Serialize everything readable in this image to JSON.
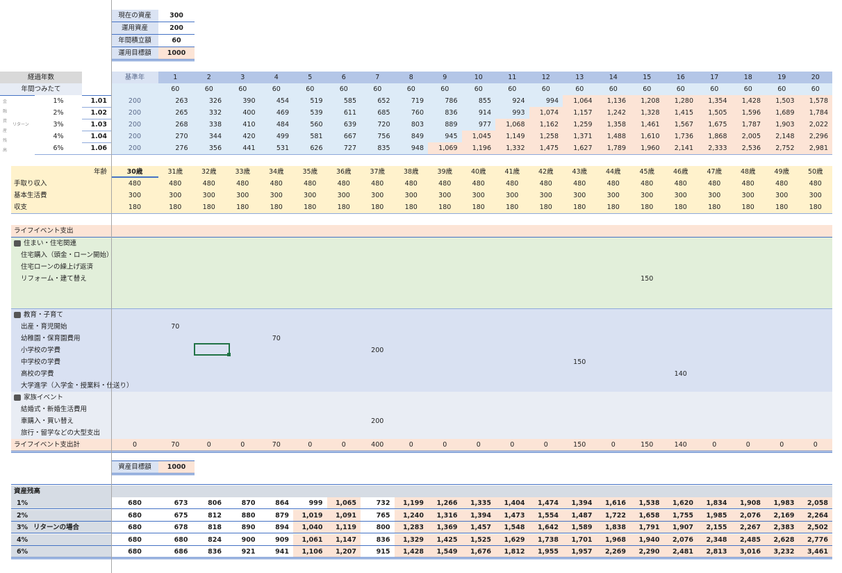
{
  "summary": [
    {
      "label": "現在の資産",
      "value": 300
    },
    {
      "label": "運用資産",
      "value": 200
    },
    {
      "label": "年間積立額",
      "value": 60
    },
    {
      "label": "運用目標額",
      "value": 1000
    }
  ],
  "projection": {
    "header_label": "経過年数",
    "base_label": "基準年",
    "years": [
      1,
      2,
      3,
      4,
      5,
      6,
      7,
      8,
      9,
      10,
      11,
      12,
      13,
      14,
      15,
      16,
      17,
      18,
      19,
      20
    ],
    "contrib_label": "年間つみたて",
    "contrib": [
      60,
      60,
      60,
      60,
      60,
      60,
      60,
      60,
      60,
      60,
      60,
      60,
      60,
      60,
      60,
      60,
      60,
      60,
      60,
      60
    ],
    "side_label": "リターン",
    "vertical_label": "金融資産残高",
    "rows": [
      {
        "rate": "1%",
        "multiplier": 1.01,
        "base": 200,
        "values": [
          263,
          326,
          390,
          454,
          519,
          585,
          652,
          719,
          786,
          855,
          924,
          994,
          "1,064",
          "1,136",
          "1,208",
          "1,280",
          "1,354",
          "1,428",
          "1,503",
          "1,578"
        ]
      },
      {
        "rate": "2%",
        "multiplier": 1.02,
        "base": 200,
        "values": [
          265,
          332,
          400,
          469,
          539,
          611,
          685,
          760,
          836,
          914,
          993,
          "1,074",
          "1,157",
          "1,242",
          "1,328",
          "1,415",
          "1,505",
          "1,596",
          "1,689",
          "1,784"
        ]
      },
      {
        "rate": "3%",
        "multiplier": 1.03,
        "base": 200,
        "values": [
          268,
          338,
          410,
          484,
          560,
          639,
          720,
          803,
          889,
          977,
          "1,068",
          "1,162",
          "1,259",
          "1,358",
          "1,461",
          "1,567",
          "1,675",
          "1,787",
          "1,903",
          "2,022"
        ]
      },
      {
        "rate": "4%",
        "multiplier": 1.04,
        "base": 200,
        "values": [
          270,
          344,
          420,
          499,
          581,
          667,
          756,
          849,
          945,
          "1,045",
          "1,149",
          "1,258",
          "1,371",
          "1,488",
          "1,610",
          "1,736",
          "1,868",
          "2,005",
          "2,148",
          "2,296"
        ]
      },
      {
        "rate": "6%",
        "multiplier": 1.06,
        "base": 200,
        "values": [
          276,
          356,
          441,
          531,
          626,
          727,
          835,
          948,
          "1,069",
          "1,196",
          "1,332",
          "1,475",
          "1,627",
          "1,789",
          "1,960",
          "2,141",
          "2,333",
          "2,536",
          "2,752",
          "2,981"
        ]
      }
    ]
  },
  "cashflow": {
    "age_label": "年齢",
    "ages": [
      "30歳",
      "31歳",
      "32歳",
      "33歳",
      "34歳",
      "35歳",
      "36歳",
      "37歳",
      "38歳",
      "39歳",
      "40歳",
      "41歳",
      "42歳",
      "43歳",
      "44歳",
      "45歳",
      "46歳",
      "47歳",
      "48歳",
      "49歳",
      "50歳"
    ],
    "rows": [
      {
        "label": "手取り収入",
        "values": [
          480,
          480,
          480,
          480,
          480,
          480,
          480,
          480,
          480,
          480,
          480,
          480,
          480,
          480,
          480,
          480,
          480,
          480,
          480,
          480,
          480
        ]
      },
      {
        "label": "基本生活費",
        "values": [
          300,
          300,
          300,
          300,
          300,
          300,
          300,
          300,
          300,
          300,
          300,
          300,
          300,
          300,
          300,
          300,
          300,
          300,
          300,
          300,
          300
        ]
      },
      {
        "label": "収支",
        "values": [
          180,
          180,
          180,
          180,
          180,
          180,
          180,
          180,
          180,
          180,
          180,
          180,
          180,
          180,
          180,
          180,
          180,
          180,
          180,
          180,
          180
        ]
      }
    ]
  },
  "life_events": {
    "title": "ライフイベント支出",
    "groups": [
      {
        "title": "住まい・住宅関連",
        "items": [
          {
            "label": "住宅購入（頭金・ローン開始）"
          },
          {
            "label": "住宅ローンの繰上げ返済"
          },
          {
            "label": "リフォーム・建て替え",
            "values": [
              null,
              null,
              null,
              null,
              null,
              null,
              null,
              null,
              null,
              null,
              null,
              null,
              null,
              null,
              null,
              150,
              null,
              null,
              null,
              null,
              null
            ]
          }
        ]
      },
      {
        "title": "教育・子育て",
        "items": [
          {
            "label": "出産・育児開始",
            "values": [
              null,
              70,
              null,
              null,
              null,
              null,
              null,
              null,
              null,
              null,
              null,
              null,
              null,
              null,
              null,
              null,
              null,
              null,
              null,
              null,
              null
            ]
          },
          {
            "label": "幼稚園・保育園費用",
            "values": [
              null,
              null,
              null,
              null,
              70,
              null,
              null,
              null,
              null,
              null,
              null,
              null,
              null,
              null,
              null,
              null,
              null,
              null,
              null,
              null,
              null
            ]
          },
          {
            "label": "小学校の学費",
            "values": [
              null,
              null,
              null,
              null,
              null,
              null,
              null,
              200,
              null,
              null,
              null,
              null,
              null,
              null,
              null,
              null,
              null,
              null,
              null,
              null,
              null
            ]
          },
          {
            "label": "中学校の学費",
            "values": [
              null,
              null,
              null,
              null,
              null,
              null,
              null,
              null,
              null,
              null,
              null,
              null,
              null,
              150,
              null,
              null,
              null,
              null,
              null,
              null,
              null
            ]
          },
          {
            "label": "高校の学費",
            "values": [
              null,
              null,
              null,
              null,
              null,
              null,
              null,
              null,
              null,
              null,
              null,
              null,
              null,
              null,
              null,
              null,
              140,
              null,
              null,
              null,
              null
            ]
          },
          {
            "label": "大学進学（入学金・授業料・仕送り）"
          }
        ]
      },
      {
        "title": "家族イベント",
        "items": [
          {
            "label": "結婚式・新婚生活費用"
          },
          {
            "label": "車購入・買い替え",
            "values": [
              null,
              null,
              null,
              null,
              null,
              null,
              null,
              200,
              null,
              null,
              null,
              null,
              null,
              null,
              null,
              null,
              null,
              null,
              null,
              null,
              null
            ]
          },
          {
            "label": "旅行・留学などの大型支出"
          }
        ]
      }
    ],
    "total": {
      "label": "ライフイベント支出計",
      "values": [
        0,
        70,
        0,
        0,
        70,
        0,
        0,
        400,
        0,
        0,
        0,
        0,
        0,
        150,
        0,
        150,
        140,
        0,
        0,
        0,
        0
      ]
    }
  },
  "assets": {
    "goal_label": "資産目標額",
    "goal": 1000,
    "title": "資産残高",
    "side_label": "リターンの場合",
    "rows": [
      {
        "rate": "1%",
        "values": [
          680,
          673,
          806,
          870,
          864,
          999,
          "1,065",
          732,
          "1,199",
          "1,266",
          "1,335",
          "1,404",
          "1,474",
          "1,394",
          "1,616",
          "1,538",
          "1,620",
          "1,834",
          "1,908",
          "1,983",
          "2,058"
        ]
      },
      {
        "rate": "2%",
        "values": [
          680,
          675,
          812,
          880,
          879,
          "1,019",
          "1,091",
          765,
          "1,240",
          "1,316",
          "1,394",
          "1,473",
          "1,554",
          "1,487",
          "1,722",
          "1,658",
          "1,755",
          "1,985",
          "2,076",
          "2,169",
          "2,264"
        ]
      },
      {
        "rate": "3%",
        "values": [
          680,
          678,
          818,
          890,
          894,
          "1,040",
          "1,119",
          800,
          "1,283",
          "1,369",
          "1,457",
          "1,548",
          "1,642",
          "1,589",
          "1,838",
          "1,791",
          "1,907",
          "2,155",
          "2,267",
          "2,383",
          "2,502"
        ]
      },
      {
        "rate": "4%",
        "values": [
          680,
          680,
          824,
          900,
          909,
          "1,061",
          "1,147",
          836,
          "1,329",
          "1,425",
          "1,525",
          "1,629",
          "1,738",
          "1,701",
          "1,968",
          "1,940",
          "2,076",
          "2,348",
          "2,485",
          "2,628",
          "2,776"
        ]
      },
      {
        "rate": "6%",
        "values": [
          680,
          686,
          836,
          921,
          941,
          "1,106",
          "1,207",
          915,
          "1,428",
          "1,549",
          "1,676",
          "1,812",
          "1,955",
          "1,957",
          "2,269",
          "2,290",
          "2,481",
          "2,813",
          "3,016",
          "3,232",
          "3,461"
        ]
      }
    ]
  }
}
